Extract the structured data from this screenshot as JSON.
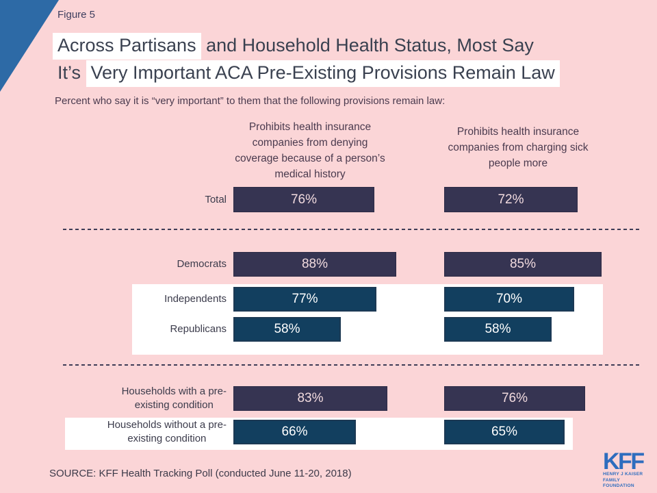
{
  "figure_label": "Figure 5",
  "title": {
    "line1_highlight": "Across Partisans",
    "line1_rest": " and Household Health Status, Most Say",
    "line2_pre": "It’s ",
    "line2_highlight": "Very Important ACA Pre-Existing Provisions Remain Law"
  },
  "subtitle": "Percent who say it is “very important” to them that the following provisions remain law:",
  "columns": {
    "header1": "Prohibits health insurance\ncompanies from denying\ncoverage because of a person’s\nmedical history",
    "header2": "Prohibits health insurance\ncompanies from charging sick\npeople more"
  },
  "chart_data": {
    "type": "bar",
    "orientation": "horizontal",
    "unit": "%",
    "xlim": [
      0,
      100
    ],
    "title": "Across Partisans and Household Health Status, Most Say It’s Very Important ACA Pre-Existing Provisions Remain Law",
    "subtitle": "Percent who say it is “very important” to them that the following provisions remain law:",
    "categories": [
      "Total",
      "Democrats",
      "Independents",
      "Republicans",
      "Households with a pre-existing condition",
      "Households without a pre-existing condition"
    ],
    "category_display": [
      "Total",
      "Democrats",
      "Independents",
      "Republicans",
      "Households with a pre-\nexisting condition",
      "Households without a pre-\nexisting condition"
    ],
    "series": [
      {
        "name": "Prohibits health insurance companies from denying coverage because of a person’s medical history",
        "values": [
          76,
          88,
          77,
          58,
          83,
          66
        ]
      },
      {
        "name": "Prohibits health insurance companies from charging sick people more",
        "values": [
          72,
          85,
          70,
          58,
          76,
          65
        ]
      }
    ],
    "groups": [
      [
        "Total"
      ],
      [
        "Democrats",
        "Independents",
        "Republicans"
      ],
      [
        "Households with a pre-existing condition",
        "Households without a pre-existing condition"
      ]
    ],
    "legend": "none",
    "grid": "off"
  },
  "source": "SOURCE: KFF Health Tracking Poll (conducted June 11-20, 2018)",
  "logo": {
    "kff": "KFF",
    "line1": "HENRY J KAISER",
    "line2": "FAMILY FOUNDATION"
  },
  "colors": {
    "background_pink": "#FBD5D7",
    "bar_navy": "#363452",
    "bar_teal": "#123F5F",
    "corner_triangle_blue": "#2D6AA6",
    "logo_blue": "#2E6DBE",
    "title_highlight": "#FFFFFF",
    "navy_bar_label": "#F2DBDF",
    "teal_bar_label": "#FFFFFF"
  }
}
